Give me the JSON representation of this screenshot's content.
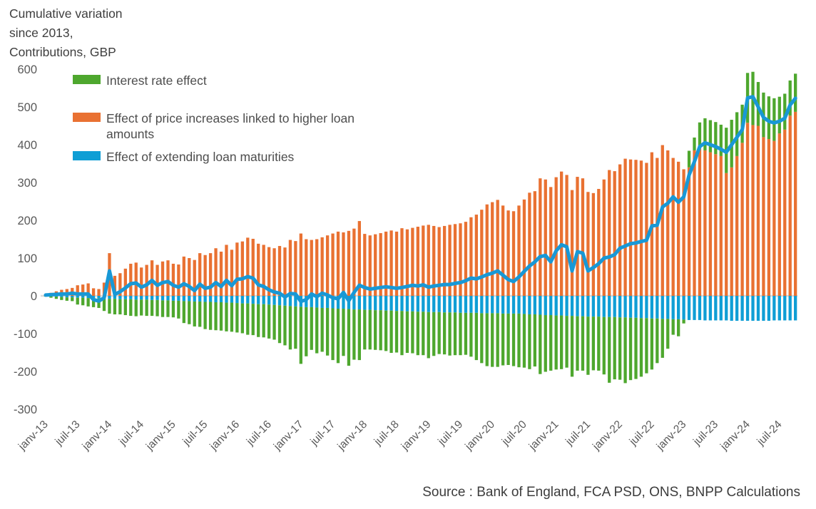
{
  "header": {
    "title_lines": [
      "Cumulative variation",
      "since 2013,",
      "Contributions, GBP"
    ]
  },
  "legend": [
    {
      "label": "Interest rate effect",
      "color": "#4EA72E"
    },
    {
      "label": "Effect of price increases linked to higher loan amounts",
      "color": "#E97132"
    },
    {
      "label": "Effect of extending loan maturities",
      "color": "#0F9ED5"
    }
  ],
  "source": "Source : Bank of England, FCA PSD, ONS, BNPP Calculations",
  "chart_data": {
    "type": "bar",
    "subtype": "stacked-monthly-bars-with-total-line",
    "x_start": "janv-13",
    "x_end": "oct-24",
    "months_count": 142,
    "x_tick_every": 6,
    "x_tick_labels": [
      "janv-13",
      "juil-13",
      "janv-14",
      "juil-14",
      "janv-15",
      "juil-15",
      "janv-16",
      "juil-16",
      "janv-17",
      "juil-17",
      "janv-18",
      "juil-18",
      "janv-19",
      "juil-19",
      "janv-20",
      "juil-20",
      "janv-21",
      "juil-21",
      "janv-22",
      "juil-22",
      "janv-23",
      "juil-23",
      "janv-24",
      "juil-24"
    ],
    "y_ticks": [
      600,
      500,
      400,
      300,
      200,
      100,
      0,
      -100,
      -200,
      -300
    ],
    "ylim": [
      -300,
      600
    ],
    "grid": "none",
    "legend_position": "top-left-inside",
    "colors": {
      "interest_rate_effect": "#4EA72E",
      "price_increase_effect": "#E97132",
      "maturity_extension_effect": "#0F9ED5",
      "total_line": "#1898D6",
      "zero_axis": "#DDDBD8",
      "tick_text": "#595959"
    },
    "series": [
      {
        "name": "Interest rate effect",
        "render": "bar",
        "values": [
          -2,
          -4,
          -6,
          -8,
          -9,
          -10,
          -18,
          -20,
          -22,
          -24,
          -25,
          -33,
          -39,
          -41,
          -40,
          -42,
          -44,
          -44,
          -42,
          -43,
          -42,
          -43,
          -44,
          -44,
          -44,
          -47,
          -58,
          -61,
          -66,
          -67,
          -72,
          -74,
          -74,
          -75,
          -76,
          -77,
          -78,
          -79,
          -83,
          -83,
          -87,
          -88,
          -90,
          -92,
          -100,
          -105,
          -115,
          -112,
          -151,
          -130,
          -113,
          -121,
          -116,
          -126,
          -137,
          -144,
          -125,
          -150,
          -133,
          -134,
          -105,
          -105,
          -105,
          -106,
          -107,
          -112,
          -110,
          -117,
          -110,
          -111,
          -115,
          -115,
          -122,
          -116,
          -111,
          -111,
          -114,
          -113,
          -112,
          -111,
          -116,
          -125,
          -132,
          -140,
          -142,
          -142,
          -137,
          -136,
          -139,
          -142,
          -142,
          -145,
          -138,
          -157,
          -150,
          -147,
          -143,
          -142,
          -137,
          -161,
          -144,
          -144,
          -154,
          -142,
          -143,
          -152,
          -174,
          -165,
          -165,
          -174,
          -165,
          -162,
          -155,
          -146,
          -135,
          -118,
          -103,
          -79,
          -41,
          -45,
          -10,
          44,
          34,
          69,
          85,
          85,
          85,
          83,
          120,
          126,
          116,
          101,
          132,
          141,
          116,
          118,
          113,
          113,
          97,
          95,
          93,
          101
        ]
      },
      {
        "name": "Effect of price increases linked to higher loan amounts",
        "render": "bar",
        "values": [
          4,
          8,
          12,
          16,
          18,
          21,
          28,
          30,
          33,
          20,
          18,
          35,
          113,
          53,
          60,
          72,
          85,
          88,
          75,
          82,
          94,
          82,
          91,
          94,
          85,
          83,
          104,
          100,
          95,
          113,
          108,
          113,
          126,
          117,
          135,
          122,
          141,
          144,
          154,
          151,
          138,
          135,
          129,
          126,
          132,
          128,
          148,
          145,
          165,
          150,
          148,
          150,
          155,
          160,
          165,
          170,
          168,
          172,
          178,
          198,
          164,
          160,
          163,
          166,
          170,
          173,
          170,
          179,
          176,
          180,
          183,
          186,
          188,
          185,
          182,
          185,
          188,
          190,
          192,
          196,
          208,
          215,
          228,
          242,
          248,
          254,
          239,
          226,
          224,
          239,
          255,
          273,
          277,
          311,
          308,
          288,
          314,
          329,
          320,
          280,
          315,
          311,
          275,
          272,
          283,
          308,
          333,
          330,
          348,
          363,
          361,
          360,
          358,
          352,
          380,
          365,
          399,
          385,
          365,
          355,
          335,
          340,
          385,
          390,
          385,
          380,
          375,
          370,
          325,
          340,
          370,
          405,
          458,
          452,
          450,
          420,
          415,
          410,
          430,
          440,
          477,
          487
        ]
      },
      {
        "name": "Effect of extending loan maturities",
        "render": "bar",
        "values": [
          0,
          -1,
          -2,
          -3,
          -4,
          -4,
          -5,
          -5,
          -6,
          -6,
          -7,
          -7,
          -8,
          -8,
          -9,
          -9,
          -9,
          -10,
          -10,
          -10,
          -11,
          -11,
          -12,
          -12,
          -13,
          -13,
          -14,
          -14,
          -15,
          -15,
          -16,
          -16,
          -17,
          -17,
          -18,
          -18,
          -19,
          -20,
          -20,
          -21,
          -22,
          -22,
          -23,
          -24,
          -25,
          -26,
          -27,
          -28,
          -29,
          -30,
          -30,
          -31,
          -32,
          -32,
          -33,
          -34,
          -34,
          -35,
          -36,
          -36,
          -37,
          -37,
          -38,
          -38,
          -39,
          -39,
          -40,
          -40,
          -41,
          -41,
          -42,
          -42,
          -43,
          -43,
          -43,
          -44,
          -44,
          -44,
          -45,
          -45,
          -45,
          -45,
          -46,
          -46,
          -46,
          -46,
          -47,
          -47,
          -47,
          -47,
          -48,
          -49,
          -49,
          -50,
          -51,
          -51,
          -52,
          -52,
          -53,
          -53,
          -54,
          -54,
          -55,
          -55,
          -55,
          -56,
          -56,
          -56,
          -57,
          -57,
          -58,
          -58,
          -59,
          -59,
          -60,
          -60,
          -61,
          -61,
          -62,
          -62,
          -63,
          -64,
          -64,
          -64,
          -65,
          -65,
          -65,
          -65,
          -65,
          -66,
          -66,
          -66,
          -66,
          -66,
          -66,
          -66,
          -66,
          -65,
          -65,
          -65,
          -65,
          -65
        ]
      },
      {
        "name": "Total cumulative variation",
        "render": "line",
        "values": [
          2,
          3,
          4,
          5,
          5,
          7,
          5,
          5,
          5,
          -10,
          -14,
          -5,
          66,
          4,
          11,
          21,
          32,
          34,
          23,
          29,
          41,
          28,
          35,
          38,
          28,
          23,
          32,
          25,
          14,
          31,
          20,
          23,
          35,
          25,
          41,
          27,
          44,
          45,
          51,
          47,
          29,
          25,
          16,
          10,
          7,
          -3,
          6,
          5,
          -15,
          -10,
          5,
          -2,
          7,
          2,
          -5,
          -8,
          9,
          -13,
          9,
          28,
          22,
          18,
          20,
          22,
          24,
          22,
          20,
          22,
          25,
          28,
          26,
          29,
          23,
          26,
          28,
          30,
          30,
          33,
          35,
          40,
          47,
          45,
          50,
          56,
          60,
          66,
          55,
          43,
          38,
          50,
          65,
          79,
          90,
          104,
          107,
          90,
          119,
          135,
          130,
          66,
          117,
          113,
          66,
          75,
          85,
          100,
          103,
          109,
          126,
          132,
          138,
          140,
          144,
          147,
          185,
          187,
          235,
          245,
          262,
          248,
          262,
          320,
          355,
          395,
          405,
          400,
          395,
          388,
          380,
          400,
          420,
          440,
          524,
          527,
          500,
          472,
          462,
          458,
          462,
          470,
          505,
          523
        ]
      }
    ],
    "stacking_note": "Positive values stack upward (orange then green cap); negative values stack downward (blue then green)."
  }
}
